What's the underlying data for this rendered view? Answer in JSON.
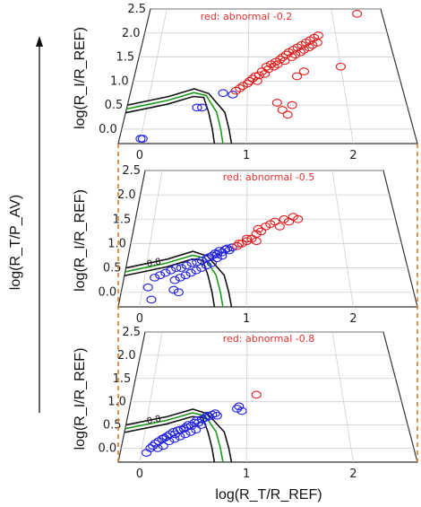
{
  "figure": {
    "y_axis_label": "log(R_I/R_REF)",
    "x_axis_label": "log(R_T/R_REF)",
    "stack_axis_label": "log(R_T/P_AV)"
  },
  "chart_data": [
    {
      "type": "scatter",
      "annotation": "red: abnormal -0.2",
      "xlim": [
        -0.2,
        2.6
      ],
      "ylim": [
        -0.3,
        2.5
      ],
      "xticks": [
        "0",
        "1",
        "2"
      ],
      "yticks": [
        "0.0",
        "0.5",
        "1.0",
        "1.5",
        "2.0",
        "2.5"
      ],
      "contour_label": "",
      "colors": {
        "normal": "#2020e0",
        "abnormal": "#e02020",
        "contour_outer": "#111111",
        "contour_inner": "#1a9a1a"
      },
      "series": [
        {
          "name": "blue",
          "x": [
            0.0,
            0.02,
            0.5,
            0.55,
            0.75,
            0.85
          ],
          "y": [
            -0.2,
            -0.2,
            0.45,
            0.45,
            0.75,
            0.72
          ]
        },
        {
          "name": "red",
          "x": [
            0.88,
            0.92,
            0.95,
            1.0,
            1.02,
            1.05,
            1.08,
            1.1,
            1.12,
            1.15,
            1.18,
            1.2,
            1.22,
            1.25,
            1.28,
            1.3,
            1.32,
            1.35,
            1.38,
            1.4,
            1.42,
            1.45,
            1.48,
            1.5,
            1.52,
            1.55,
            1.58,
            1.6,
            1.62,
            1.65,
            1.68,
            1.7,
            1.72,
            1.75,
            1.78,
            1.8,
            1.45,
            1.4,
            1.52,
            1.6,
            1.3,
            1.35,
            2.0,
            2.3
          ],
          "y": [
            0.8,
            0.85,
            0.9,
            0.95,
            1.0,
            1.05,
            1.1,
            1.0,
            1.12,
            1.2,
            1.15,
            1.3,
            1.25,
            1.35,
            1.3,
            1.4,
            1.35,
            1.45,
            1.5,
            1.42,
            1.55,
            1.6,
            1.5,
            1.65,
            1.55,
            1.7,
            1.6,
            1.75,
            1.65,
            1.8,
            1.7,
            1.85,
            1.75,
            1.9,
            1.8,
            1.95,
            0.5,
            0.3,
            1.1,
            1.2,
            0.55,
            0.4,
            1.3,
            2.4
          ]
        }
      ]
    },
    {
      "type": "scatter",
      "annotation": "red: abnormal -0.5",
      "xlim": [
        -0.2,
        2.6
      ],
      "ylim": [
        -0.3,
        2.5
      ],
      "xticks": [
        "0",
        "1",
        "2"
      ],
      "yticks": [
        "0.0",
        "0.5",
        "1.0",
        "1.5",
        "2.0",
        "2.5"
      ],
      "contour_label": "0.8",
      "colors": {
        "normal": "#2020e0",
        "abnormal": "#e02020",
        "contour_outer": "#111111",
        "contour_inner": "#1a9a1a"
      },
      "series": [
        {
          "name": "blue",
          "x": [
            0.05,
            0.1,
            0.15,
            0.2,
            0.25,
            0.3,
            0.35,
            0.4,
            0.45,
            0.5,
            0.55,
            0.6,
            0.62,
            0.65,
            0.68,
            0.7,
            0.72,
            0.75,
            0.78,
            0.8,
            0.82,
            0.85,
            0.55,
            0.5,
            0.6,
            0.65,
            0.45,
            0.4,
            0.35,
            0.3,
            0.7,
            0.75,
            0.1,
            0.3,
            0.35
          ],
          "y": [
            0.1,
            0.3,
            0.35,
            0.4,
            0.45,
            0.5,
            0.5,
            0.55,
            0.6,
            0.62,
            0.65,
            0.7,
            0.72,
            0.75,
            0.8,
            0.78,
            0.85,
            0.82,
            0.88,
            0.9,
            0.86,
            0.92,
            0.5,
            0.45,
            0.55,
            0.6,
            0.4,
            0.35,
            0.3,
            0.25,
            0.7,
            0.75,
            -0.15,
            0.05,
            0.0
          ]
        },
        {
          "name": "red",
          "x": [
            0.9,
            0.92,
            0.95,
            1.0,
            1.05,
            1.1,
            1.12,
            1.15,
            1.2,
            1.25,
            1.3,
            1.35,
            1.4,
            1.1,
            1.0,
            1.45,
            1.5,
            1.55
          ],
          "y": [
            0.95,
            1.0,
            1.0,
            1.05,
            1.1,
            1.2,
            1.3,
            1.25,
            1.35,
            1.4,
            1.45,
            1.35,
            1.5,
            1.05,
            1.1,
            1.45,
            1.55,
            1.5
          ]
        }
      ]
    },
    {
      "type": "scatter",
      "annotation": "red: abnormal -0.8",
      "xlim": [
        -0.2,
        2.6
      ],
      "ylim": [
        -0.3,
        2.5
      ],
      "xticks": [
        "0",
        "1",
        "2"
      ],
      "yticks": [
        "0.0",
        "0.5",
        "1.0",
        "1.5",
        "2.0",
        "2.5"
      ],
      "contour_label": "0.8",
      "colors": {
        "normal": "#2020e0",
        "abnormal": "#e02020",
        "contour_outer": "#111111",
        "contour_inner": "#1a9a1a"
      },
      "series": [
        {
          "name": "blue",
          "x": [
            0.05,
            0.08,
            0.1,
            0.12,
            0.15,
            0.18,
            0.2,
            0.22,
            0.25,
            0.28,
            0.3,
            0.32,
            0.35,
            0.38,
            0.4,
            0.42,
            0.45,
            0.48,
            0.5,
            0.52,
            0.55,
            0.58,
            0.6,
            0.62,
            0.65,
            0.68,
            0.7,
            0.25,
            0.3,
            0.35,
            0.4,
            0.45,
            0.5,
            0.55,
            0.15,
            0.2,
            0.9,
            0.92,
            0.95
          ],
          "y": [
            -0.1,
            0.0,
            0.05,
            0.1,
            0.15,
            0.2,
            0.22,
            0.25,
            0.3,
            0.35,
            0.3,
            0.38,
            0.4,
            0.42,
            0.45,
            0.5,
            0.48,
            0.55,
            0.6,
            0.55,
            0.62,
            0.65,
            0.7,
            0.68,
            0.72,
            0.75,
            0.7,
            0.15,
            0.2,
            0.25,
            0.3,
            0.35,
            0.4,
            0.5,
            0.0,
            0.05,
            0.85,
            0.9,
            0.8
          ]
        },
        {
          "name": "red",
          "x": [
            1.1
          ],
          "y": [
            1.15
          ]
        }
      ]
    }
  ]
}
